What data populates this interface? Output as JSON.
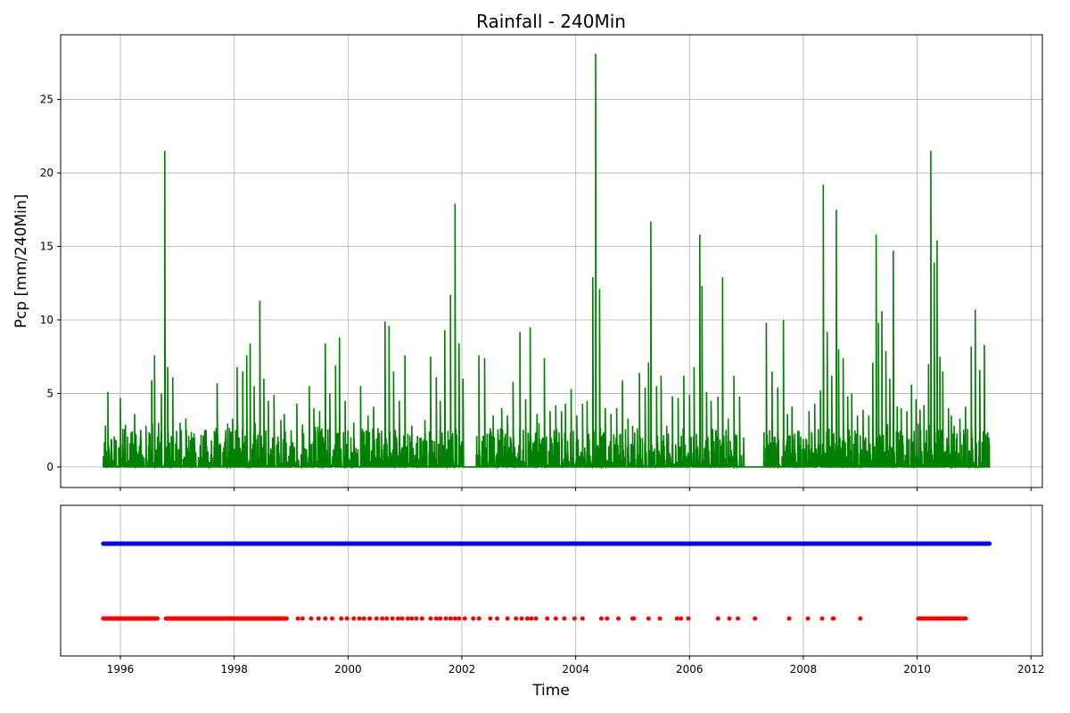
{
  "chart_data": [
    {
      "type": "line",
      "title": "Rainfall - 240Min",
      "xlabel": "",
      "ylabel": "Pcp [mm/240Min]",
      "xlim": [
        1994.95,
        2012.2
      ],
      "ylim": [
        -1.4,
        29.4
      ],
      "yticks": [
        0,
        5,
        10,
        15,
        20,
        25
      ],
      "grid": true,
      "line_color": "#008000",
      "data_start": 1995.7,
      "data_end": 2011.27,
      "baseline_noise_max": 1.2,
      "gaps": [
        [
          2002.03,
          2002.25
        ],
        [
          2006.92,
          2007.3
        ]
      ],
      "peaks": [
        [
          1995.72,
          1.7
        ],
        [
          1995.78,
          5.1
        ],
        [
          1995.9,
          1.9
        ],
        [
          1996.0,
          4.7
        ],
        [
          1996.2,
          1.3
        ],
        [
          1996.25,
          3.6
        ],
        [
          1996.35,
          2.0
        ],
        [
          1996.45,
          2.8
        ],
        [
          1996.55,
          5.9
        ],
        [
          1996.6,
          7.6
        ],
        [
          1996.67,
          3.0
        ],
        [
          1996.72,
          5.0
        ],
        [
          1996.78,
          21.5
        ],
        [
          1996.83,
          6.8
        ],
        [
          1996.92,
          6.1
        ],
        [
          1997.05,
          3.0
        ],
        [
          1997.15,
          3.3
        ],
        [
          1997.3,
          2.0
        ],
        [
          1997.4,
          1.5
        ],
        [
          1997.48,
          2.5
        ],
        [
          1997.6,
          1.8
        ],
        [
          1997.7,
          5.7
        ],
        [
          1997.85,
          2.5
        ],
        [
          1997.97,
          3.3
        ],
        [
          1998.05,
          6.8
        ],
        [
          1998.15,
          6.5
        ],
        [
          1998.22,
          7.6
        ],
        [
          1998.28,
          8.4
        ],
        [
          1998.35,
          5.5
        ],
        [
          1998.45,
          11.3
        ],
        [
          1998.52,
          6.0
        ],
        [
          1998.6,
          4.5
        ],
        [
          1998.7,
          4.9
        ],
        [
          1998.82,
          3.2
        ],
        [
          1998.88,
          3.6
        ],
        [
          1999.0,
          2.5
        ],
        [
          1999.1,
          4.3
        ],
        [
          1999.2,
          2.9
        ],
        [
          1999.32,
          5.5
        ],
        [
          1999.4,
          4.0
        ],
        [
          1999.5,
          3.8
        ],
        [
          1999.6,
          8.4
        ],
        [
          1999.68,
          5.0
        ],
        [
          1999.78,
          6.9
        ],
        [
          1999.85,
          8.8
        ],
        [
          1999.95,
          4.5
        ],
        [
          2000.1,
          3.0
        ],
        [
          2000.22,
          5.5
        ],
        [
          2000.35,
          3.5
        ],
        [
          2000.45,
          4.1
        ],
        [
          2000.55,
          2.3
        ],
        [
          2000.65,
          9.9
        ],
        [
          2000.72,
          9.6
        ],
        [
          2000.8,
          6.5
        ],
        [
          2000.9,
          4.5
        ],
        [
          2001.0,
          7.6
        ],
        [
          2001.12,
          2.8
        ],
        [
          2001.22,
          2.1
        ],
        [
          2001.35,
          3.2
        ],
        [
          2001.45,
          7.5
        ],
        [
          2001.55,
          6.1
        ],
        [
          2001.62,
          4.5
        ],
        [
          2001.7,
          9.3
        ],
        [
          2001.8,
          11.7
        ],
        [
          2001.88,
          17.9
        ],
        [
          2001.95,
          8.4
        ],
        [
          2002.02,
          6.0
        ],
        [
          2002.3,
          7.6
        ],
        [
          2002.4,
          7.4
        ],
        [
          2002.55,
          3.5
        ],
        [
          2002.7,
          4.0
        ],
        [
          2002.8,
          3.5
        ],
        [
          2002.9,
          5.8
        ],
        [
          2003.02,
          9.2
        ],
        [
          2003.12,
          4.6
        ],
        [
          2003.2,
          9.5
        ],
        [
          2003.32,
          3.6
        ],
        [
          2003.45,
          7.4
        ],
        [
          2003.55,
          3.8
        ],
        [
          2003.65,
          4.2
        ],
        [
          2003.75,
          3.8
        ],
        [
          2003.82,
          4.3
        ],
        [
          2003.92,
          5.3
        ],
        [
          2004.02,
          3.5
        ],
        [
          2004.12,
          4.3
        ],
        [
          2004.2,
          4.5
        ],
        [
          2004.3,
          12.9
        ],
        [
          2004.35,
          28.1
        ],
        [
          2004.42,
          12.1
        ],
        [
          2004.52,
          4.0
        ],
        [
          2004.62,
          3.6
        ],
        [
          2004.72,
          4.0
        ],
        [
          2004.82,
          5.9
        ],
        [
          2004.92,
          3.3
        ],
        [
          2005.0,
          2.8
        ],
        [
          2005.12,
          6.4
        ],
        [
          2005.22,
          5.4
        ],
        [
          2005.28,
          7.1
        ],
        [
          2005.32,
          16.7
        ],
        [
          2005.42,
          5.5
        ],
        [
          2005.5,
          6.2
        ],
        [
          2005.6,
          2.8
        ],
        [
          2005.7,
          4.8
        ],
        [
          2005.8,
          4.7
        ],
        [
          2005.9,
          6.2
        ],
        [
          2006.0,
          4.9
        ],
        [
          2006.08,
          6.8
        ],
        [
          2006.18,
          15.8
        ],
        [
          2006.22,
          12.3
        ],
        [
          2006.3,
          5.1
        ],
        [
          2006.38,
          4.5
        ],
        [
          2006.5,
          4.8
        ],
        [
          2006.58,
          12.9
        ],
        [
          2006.68,
          3.3
        ],
        [
          2006.78,
          6.2
        ],
        [
          2006.88,
          4.8
        ],
        [
          2006.95,
          2.0
        ],
        [
          2007.35,
          9.8
        ],
        [
          2007.45,
          6.5
        ],
        [
          2007.55,
          5.4
        ],
        [
          2007.65,
          10.0
        ],
        [
          2007.72,
          3.6
        ],
        [
          2007.8,
          4.1
        ],
        [
          2008.0,
          1.9
        ],
        [
          2008.1,
          3.8
        ],
        [
          2008.2,
          4.3
        ],
        [
          2008.3,
          5.2
        ],
        [
          2008.35,
          19.2
        ],
        [
          2008.42,
          9.2
        ],
        [
          2008.5,
          6.2
        ],
        [
          2008.58,
          17.5
        ],
        [
          2008.62,
          8.0
        ],
        [
          2008.7,
          7.4
        ],
        [
          2008.78,
          4.8
        ],
        [
          2008.85,
          5.0
        ],
        [
          2008.95,
          3.5
        ],
        [
          2009.05,
          3.9
        ],
        [
          2009.15,
          3.5
        ],
        [
          2009.22,
          7.1
        ],
        [
          2009.28,
          15.8
        ],
        [
          2009.32,
          9.8
        ],
        [
          2009.38,
          10.6
        ],
        [
          2009.45,
          7.9
        ],
        [
          2009.52,
          6.0
        ],
        [
          2009.58,
          14.7
        ],
        [
          2009.65,
          4.1
        ],
        [
          2009.72,
          4.0
        ],
        [
          2009.82,
          3.8
        ],
        [
          2009.9,
          5.6
        ],
        [
          2009.98,
          4.6
        ],
        [
          2010.05,
          3.9
        ],
        [
          2010.12,
          4.2
        ],
        [
          2010.2,
          7.0
        ],
        [
          2010.24,
          21.5
        ],
        [
          2010.3,
          13.9
        ],
        [
          2010.35,
          15.4
        ],
        [
          2010.4,
          7.5
        ],
        [
          2010.45,
          6.5
        ],
        [
          2010.55,
          4.0
        ],
        [
          2010.6,
          3.5
        ],
        [
          2010.65,
          2.8
        ],
        [
          2010.75,
          3.3
        ],
        [
          2010.85,
          4.1
        ],
        [
          2010.95,
          8.2
        ],
        [
          2011.02,
          10.7
        ],
        [
          2011.1,
          6.6
        ],
        [
          2011.18,
          8.3
        ],
        [
          2011.26,
          2.0
        ]
      ]
    },
    {
      "type": "scatter",
      "title": "",
      "xlabel": "Time",
      "ylabel": "",
      "xlim": [
        1994.95,
        2012.2
      ],
      "xticks": [
        1996,
        1998,
        2000,
        2002,
        2004,
        2006,
        2008,
        2010,
        2012
      ],
      "grid": true,
      "series": [
        {
          "color": "#0000ff",
          "level": "upper",
          "dense_ranges": [
            [
              1995.7,
              2011.27
            ]
          ],
          "points": []
        },
        {
          "color": "#ff0000",
          "level": "lower",
          "dense_ranges": [
            [
              1995.7,
              1996.65
            ],
            [
              1996.8,
              1998.92
            ]
          ],
          "points": [
            1999.12,
            1999.2,
            1999.35,
            1999.48,
            1999.6,
            1999.72,
            1999.88,
            1999.98,
            2000.1,
            2000.2,
            2000.28,
            2000.38,
            2000.5,
            2000.6,
            2000.68,
            2000.78,
            2000.88,
            2000.95,
            2001.05,
            2001.12,
            2001.2,
            2001.3,
            2001.45,
            2001.55,
            2001.62,
            2001.72,
            2001.8,
            2001.88,
            2001.95,
            2002.05,
            2002.2,
            2002.3,
            2002.5,
            2002.62,
            2002.8,
            2002.95,
            2003.05,
            2003.15,
            2003.22,
            2003.3,
            2003.5,
            2003.65,
            2003.8,
            2003.98,
            2004.12,
            2004.45,
            2004.55,
            2004.75,
            2005.0,
            2005.02,
            2005.28,
            2005.48,
            2005.78,
            2005.85,
            2005.98,
            2006.5,
            2006.7,
            2006.85,
            2007.15,
            2007.75,
            2008.08,
            2008.33,
            2008.52,
            2008.53,
            2009.0,
            2010.02,
            2010.04,
            2010.06,
            2010.08,
            2010.12,
            2010.15,
            2010.18,
            2010.21,
            2010.25,
            2010.28,
            2010.32,
            2010.35,
            2010.38,
            2010.42,
            2010.45,
            2010.48,
            2010.52,
            2010.55,
            2010.58,
            2010.62,
            2010.65,
            2010.68,
            2010.72,
            2010.75,
            2010.78,
            2010.82,
            2010.85
          ]
        }
      ]
    }
  ]
}
